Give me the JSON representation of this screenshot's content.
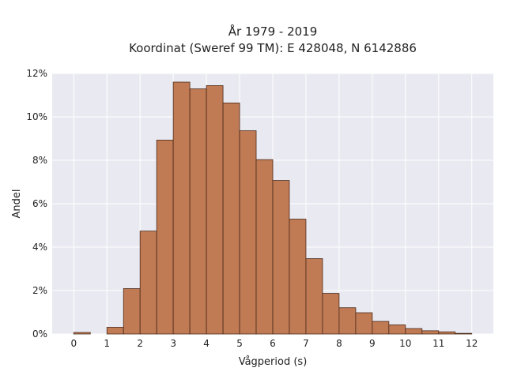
{
  "chart_data": {
    "type": "bar",
    "title": "År 1979 - 2019",
    "subtitle": "Koordinat (Sweref 99 TM): E 428048, N 6142886",
    "xlabel": "Vågperiod (s)",
    "ylabel": "Andel",
    "xlim": [
      -0.65,
      12.65
    ],
    "ylim": [
      0,
      0.12
    ],
    "bin_width": 0.5,
    "x_ticks": [
      "0",
      "1",
      "2",
      "3",
      "4",
      "5",
      "6",
      "7",
      "8",
      "9",
      "10",
      "11",
      "12"
    ],
    "y_ticks": [
      "0%",
      "2%",
      "4%",
      "6%",
      "8%",
      "10%",
      "12%"
    ],
    "bins_start": [
      0,
      1,
      1.5,
      2,
      2.5,
      3,
      3.5,
      4,
      4.5,
      5,
      5.5,
      6,
      6.5,
      7,
      7.5,
      8,
      8.5,
      9,
      9.5,
      10,
      10.5,
      11,
      11.5
    ],
    "values": [
      0.0007,
      0.0031,
      0.0209,
      0.0474,
      0.0893,
      0.116,
      0.1129,
      0.1144,
      0.1064,
      0.0936,
      0.0803,
      0.0707,
      0.0529,
      0.0347,
      0.0187,
      0.0121,
      0.0098,
      0.0058,
      0.0042,
      0.0025,
      0.0015,
      0.001,
      0.0003
    ],
    "grid": true,
    "colors": {
      "bar_fill": "#c07a54",
      "bar_edge": "#4a2a1a",
      "plot_bg": "#e9e9f1",
      "grid": "#ffffff"
    }
  }
}
